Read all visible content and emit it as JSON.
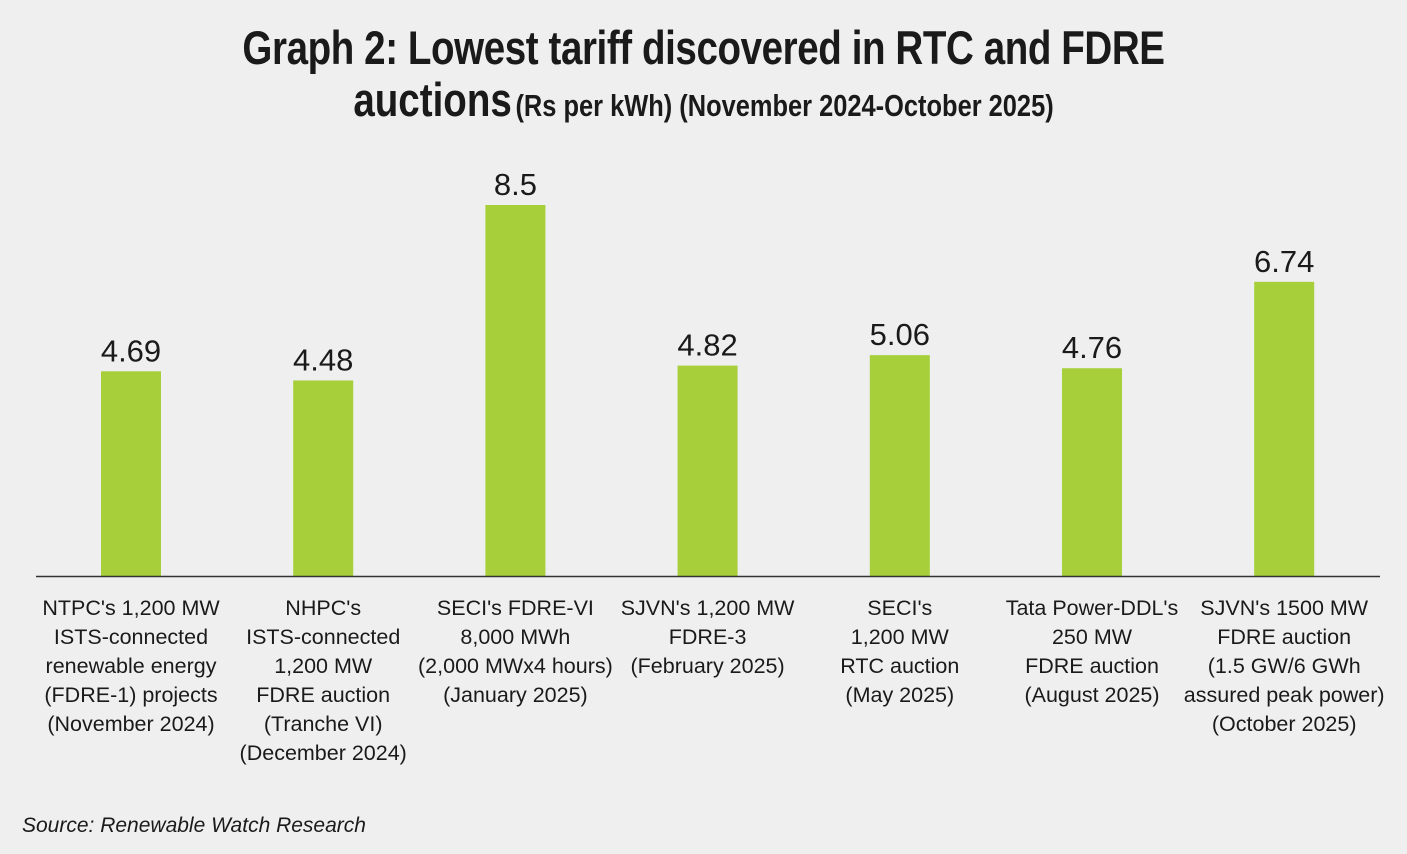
{
  "chart_data": {
    "type": "bar",
    "title_main": "Graph 2: Lowest tariff discovered in RTC and FDRE",
    "title_second_big": "auctions",
    "title_second_small": "(Rs per kWh) (November 2024-October 2025)",
    "xlabel": "",
    "ylabel": "",
    "ylim": [
      0,
      8.5
    ],
    "grid": false,
    "bar_color": "#a6cf39",
    "categories": [
      [
        "NTPC's 1,200 MW",
        "ISTS-connected",
        "renewable energy",
        "(FDRE-1) projects",
        "(November 2024)"
      ],
      [
        "NHPC's",
        "ISTS-connected",
        "1,200 MW",
        "FDRE auction",
        "(Tranche VI)",
        "(December 2024)"
      ],
      [
        "SECI's FDRE-VI",
        "8,000 MWh",
        "(2,000 MWx4 hours)",
        "(January 2025)"
      ],
      [
        "SJVN's 1,200 MW",
        "FDRE-3",
        "(February 2025)"
      ],
      [
        "SECI's",
        "1,200 MW",
        "RTC auction",
        "(May 2025)"
      ],
      [
        "Tata Power-DDL's",
        "250 MW",
        "FDRE auction",
        "(August 2025)"
      ],
      [
        "SJVN's 1500 MW",
        "FDRE auction",
        "(1.5 GW/6 GWh",
        "assured peak power)",
        "(October 2025)"
      ]
    ],
    "values": [
      4.69,
      4.48,
      8.5,
      4.82,
      5.06,
      4.76,
      6.74
    ],
    "value_labels": [
      "4.69",
      "4.48",
      "8.5",
      "4.82",
      "5.06",
      "4.76",
      "6.74"
    ]
  },
  "source": "Source: Renewable Watch Research"
}
